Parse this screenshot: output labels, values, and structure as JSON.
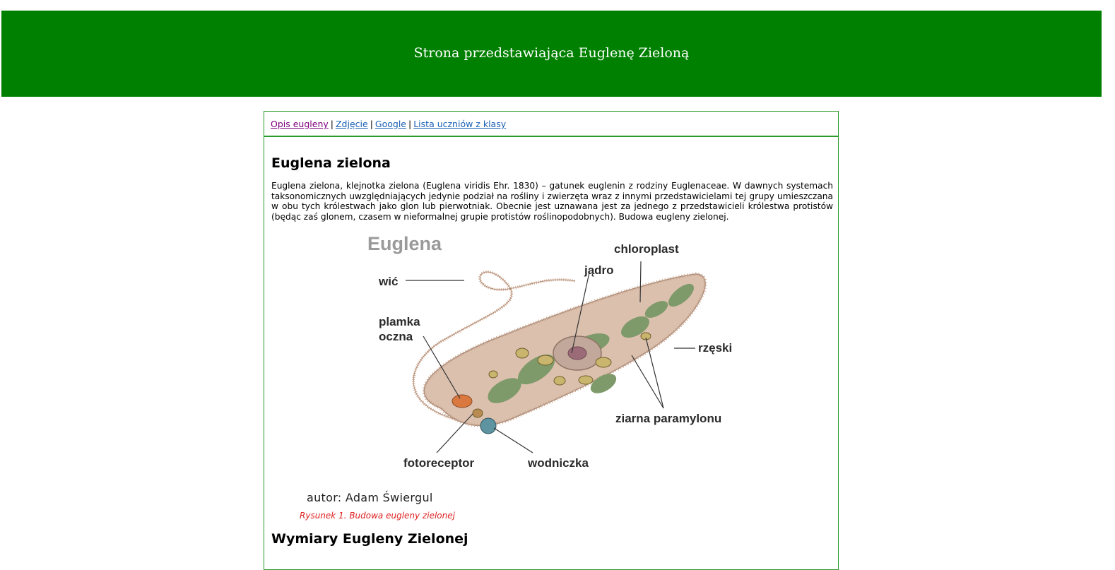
{
  "header": {
    "title": "Strona przedstawiająca Euglenę Zieloną"
  },
  "nav": {
    "links": [
      "Opis eugleny",
      "Zdjęcie",
      "Google",
      "Lista uczniów z klasy"
    ],
    "separator": "|"
  },
  "article": {
    "heading": "Euglena zielona",
    "intro": "Euglena zielona, klejnotka zielona (Euglena viridis Ehr. 1830) – gatunek euglenin z rodziny Euglenaceae. W dawnych systemach taksonomicznych uwzględniających jedynie podział na rośliny i zwierzęta wraz z innymi przedstawicielami tej grupy umieszczana w obu tych królestwach jako glon lub pierwotniak. Obecnie jest uznawana jest za jednego z przedstawicieli królestwa protistów (będąc zaś glonem, czasem w nieformalnej grupie protistów roślinopodobnych). Budowa eugleny zielonej.",
    "figure": {
      "title": "Euglena",
      "labels": {
        "flagellum": "wić",
        "nucleus": "jądro",
        "chloroplast": "chloroplast",
        "eyespot_1": "plamka",
        "eyespot_2": "oczna",
        "cilia": "rzęski",
        "paramylon": "ziarna paramylonu",
        "photoreceptor": "fotoreceptor",
        "vacuole": "wodniczka"
      },
      "author": "autor: Adam Świergul",
      "caption": "Rysunek 1. Budowa eugleny zielonej"
    },
    "heading2": "Wymiary Eugleny Zielonej"
  },
  "colors": {
    "banner": "#008000",
    "border": "#2a9a2a",
    "link": "#1a5fb4",
    "visited_link": "#800080",
    "caption": "#e02020"
  }
}
